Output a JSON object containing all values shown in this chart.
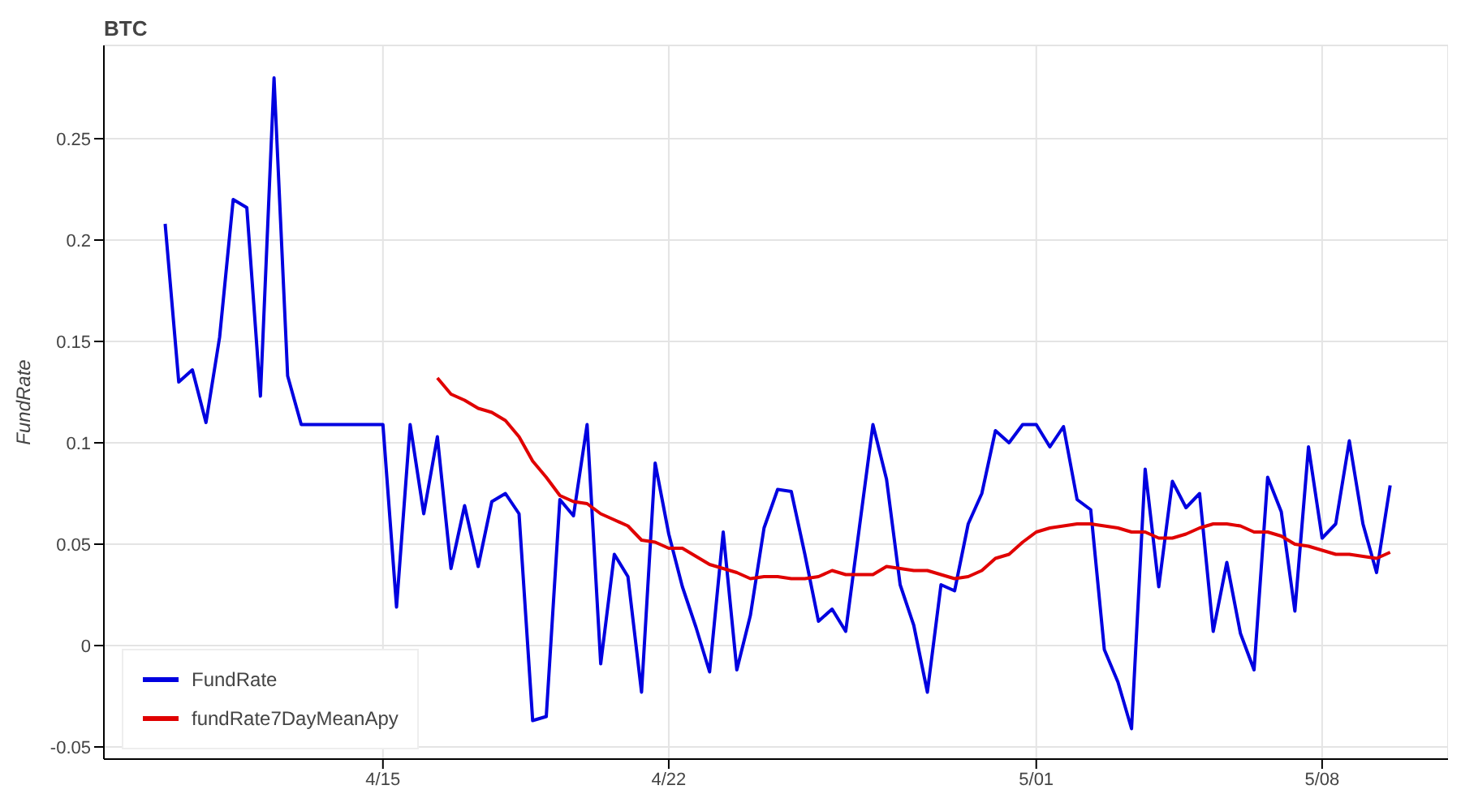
{
  "chart_data": {
    "type": "line",
    "title": "BTC",
    "ylabel": "FundRate",
    "x": [
      "--04-09T16:00",
      "--04-10T00:00",
      "--04-10T08:00",
      "--04-10T16:00",
      "--04-11T00:00",
      "--04-11T08:00",
      "--04-11T16:00",
      "--04-12T00:00",
      "--04-12T08:00",
      "--04-12T16:00",
      "--04-13T00:00",
      "--04-13T08:00",
      "--04-13T16:00",
      "--04-14T00:00",
      "--04-14T08:00",
      "--04-14T16:00",
      "--04-15T00:00",
      "--04-15T08:00",
      "--04-15T16:00",
      "--04-16T00:00",
      "--04-16T08:00",
      "--04-16T16:00",
      "--04-17T00:00",
      "--04-17T08:00",
      "--04-17T16:00",
      "--04-18T00:00",
      "--04-18T08:00",
      "--04-18T16:00",
      "--04-19T00:00",
      "--04-19T08:00",
      "--04-19T16:00",
      "--04-20T00:00",
      "--04-20T08:00",
      "--04-20T16:00",
      "--04-21T00:00",
      "--04-21T08:00",
      "--04-21T16:00",
      "--04-22T00:00",
      "--04-22T08:00",
      "--04-22T16:00",
      "--04-23T00:00",
      "--04-23T08:00",
      "--04-23T16:00",
      "--04-24T00:00",
      "--04-24T08:00",
      "--04-24T16:00",
      "--04-25T00:00",
      "--04-25T08:00",
      "--04-25T16:00",
      "--04-26T00:00",
      "--04-26T08:00",
      "--04-26T16:00",
      "--04-27T00:00",
      "--04-27T08:00",
      "--04-27T16:00",
      "--04-28T00:00",
      "--04-28T08:00",
      "--04-28T16:00",
      "--04-29T00:00",
      "--04-29T08:00",
      "--04-29T16:00",
      "--04-30T00:00",
      "--04-30T08:00",
      "--04-30T16:00",
      "--05-01T00:00",
      "--05-01T08:00",
      "--05-01T16:00",
      "--05-02T00:00",
      "--05-02T08:00",
      "--05-02T16:00",
      "--05-03T00:00",
      "--05-03T08:00",
      "--05-03T16:00",
      "--05-04T00:00",
      "--05-04T08:00",
      "--05-04T16:00",
      "--05-05T00:00",
      "--05-05T08:00",
      "--05-05T16:00",
      "--05-06T00:00",
      "--05-06T08:00",
      "--05-06T16:00",
      "--05-07T00:00",
      "--05-07T08:00",
      "--05-07T16:00",
      "--05-08T00:00",
      "--05-08T08:00",
      "--05-08T16:00",
      "--05-09T00:00",
      "--05-09T08:00",
      "--05-09T16:00"
    ],
    "series": [
      {
        "name": "FundRate",
        "color": "#0000e0",
        "values": [
          0.208,
          0.13,
          0.136,
          0.11,
          0.152,
          0.22,
          0.216,
          0.123,
          0.28,
          0.133,
          0.109,
          0.109,
          0.109,
          0.109,
          0.109,
          0.109,
          0.109,
          0.019,
          0.109,
          0.065,
          0.103,
          0.038,
          0.069,
          0.039,
          0.071,
          0.075,
          0.065,
          -0.037,
          -0.035,
          0.072,
          0.064,
          0.109,
          -0.009,
          0.045,
          0.034,
          -0.023,
          0.09,
          0.055,
          0.029,
          0.009,
          -0.013,
          0.056,
          -0.012,
          0.015,
          0.058,
          0.077,
          0.076,
          0.045,
          0.012,
          0.018,
          0.007,
          0.058,
          0.109,
          0.082,
          0.03,
          0.01,
          -0.023,
          0.03,
          0.027,
          0.06,
          0.075,
          0.106,
          0.1,
          0.109,
          0.109,
          0.098,
          0.108,
          0.072,
          0.067,
          -0.002,
          -0.018,
          -0.041,
          0.087,
          0.029,
          0.081,
          0.068,
          0.075,
          0.007,
          0.041,
          0.006,
          -0.012,
          0.083,
          0.066,
          0.017,
          0.098,
          0.053,
          0.06,
          0.101,
          0.06,
          0.036,
          0.079
        ]
      },
      {
        "name": "fundRate7DayMeanApy",
        "color": "#e00000",
        "values": [
          null,
          null,
          null,
          null,
          null,
          null,
          null,
          null,
          null,
          null,
          null,
          null,
          null,
          null,
          null,
          null,
          null,
          null,
          null,
          null,
          0.132,
          0.124,
          0.121,
          0.117,
          0.115,
          0.111,
          0.103,
          0.091,
          0.083,
          0.074,
          0.071,
          0.07,
          0.065,
          0.062,
          0.059,
          0.052,
          0.051,
          0.048,
          0.048,
          0.044,
          0.04,
          0.038,
          0.036,
          0.033,
          0.034,
          0.034,
          0.033,
          0.033,
          0.034,
          0.037,
          0.035,
          0.035,
          0.035,
          0.039,
          0.038,
          0.037,
          0.037,
          0.035,
          0.033,
          0.034,
          0.037,
          0.043,
          0.045,
          0.051,
          0.056,
          0.058,
          0.059,
          0.06,
          0.06,
          0.059,
          0.058,
          0.056,
          0.056,
          0.053,
          0.053,
          0.055,
          0.058,
          0.06,
          0.06,
          0.059,
          0.056,
          0.056,
          0.054,
          0.05,
          0.049,
          0.047,
          0.045,
          0.045,
          0.044,
          0.043,
          0.046
        ]
      }
    ],
    "xlim": [
      "--04-08T04:00",
      "--05-11T02:00"
    ],
    "xticks": [
      {
        "value": "--04-15",
        "label": "4/15"
      },
      {
        "value": "--04-22",
        "label": "4/22"
      },
      {
        "value": "--05-01",
        "label": "5/01"
      },
      {
        "value": "--05-08",
        "label": "5/08"
      }
    ],
    "ylim": [
      -0.056,
      0.296
    ],
    "yticks": [
      -0.05,
      0,
      0.05,
      0.1,
      0.15,
      0.2,
      0.25
    ],
    "grid": true,
    "legend": "bottom left",
    "marker": "none",
    "line_style": "solid"
  }
}
